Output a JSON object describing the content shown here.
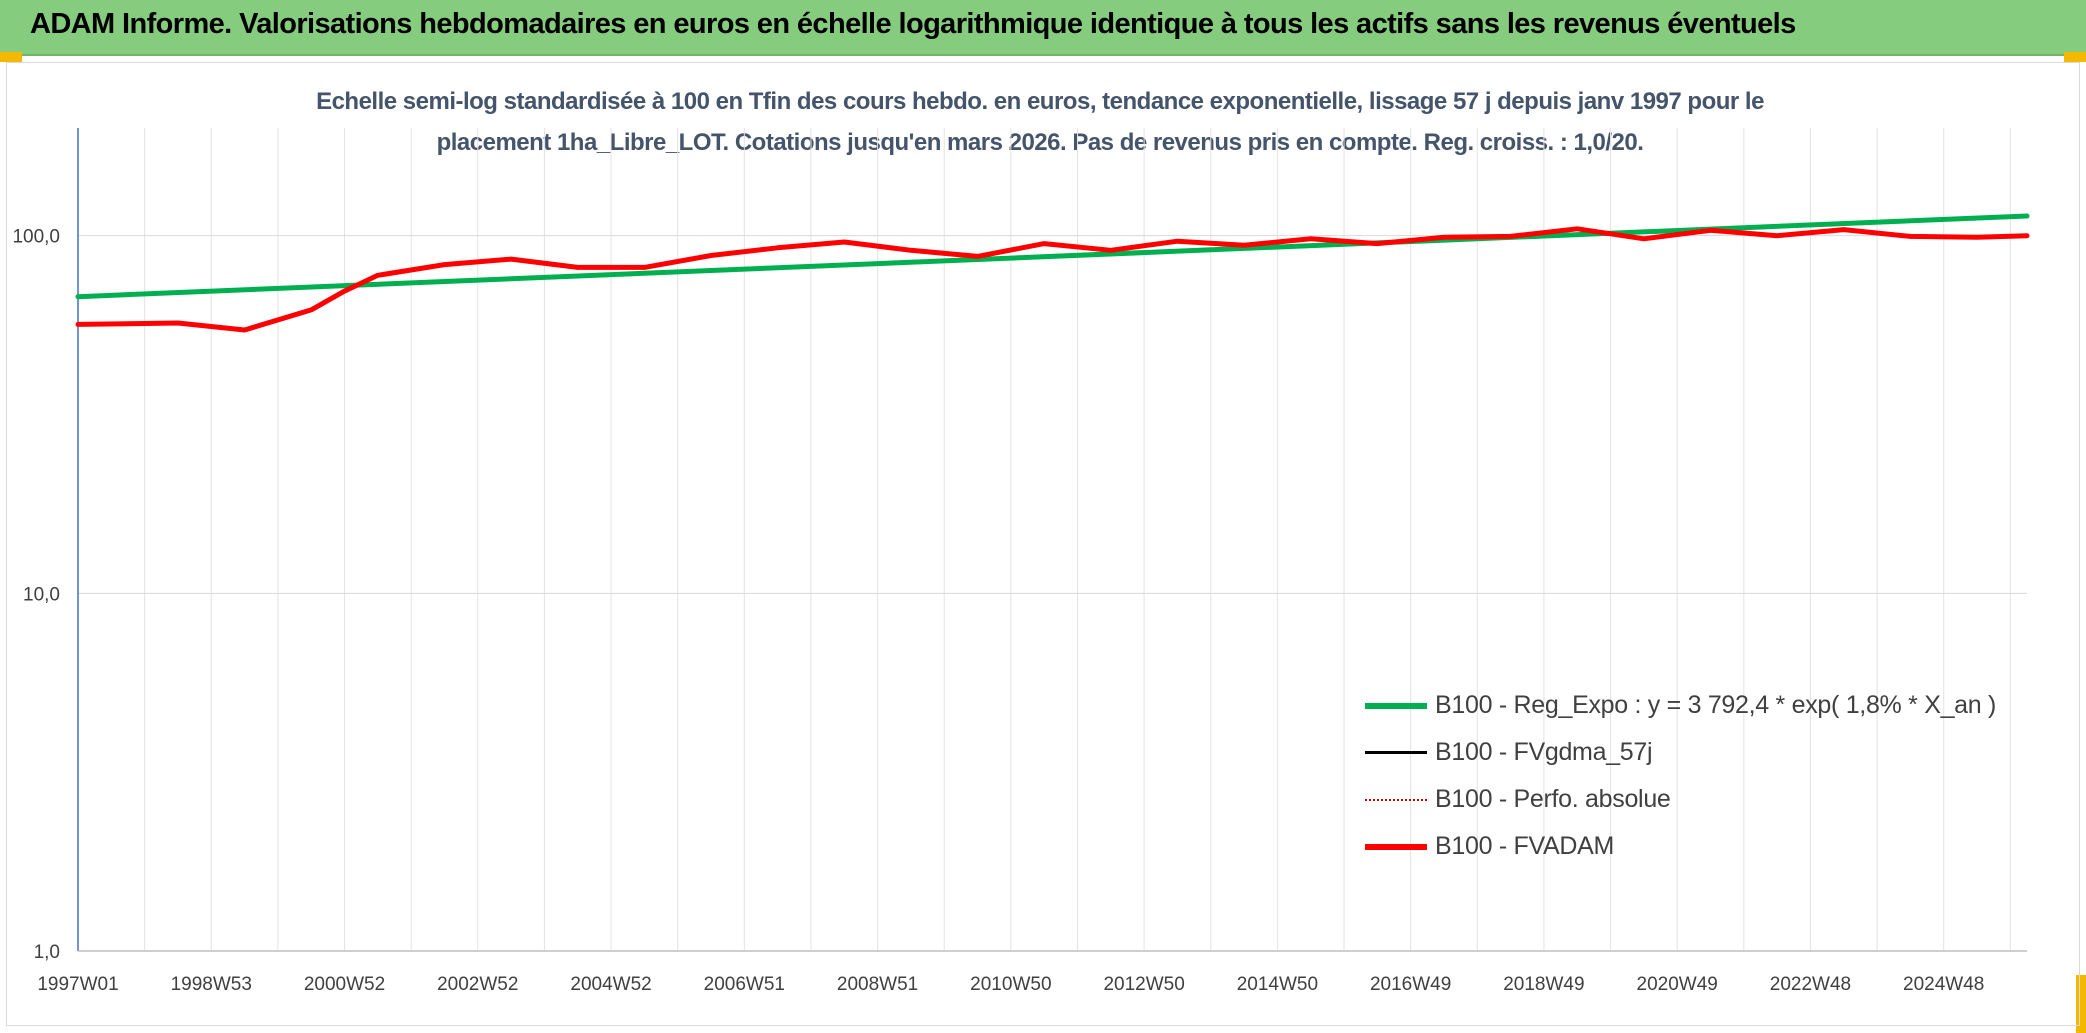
{
  "banner": {
    "title": "ADAM Informe. Valorisations hebdomadaires en euros en échelle logarithmique identique à tous les actifs sans les revenus éventuels"
  },
  "colors": {
    "banner_bg": "#86cc7e",
    "corner_accent": "#f5b800",
    "title_text": "#44546a",
    "trend_green": "#00b050",
    "fvadam_red": "#ff0000",
    "fvgdma_black": "#000000",
    "perfo_dotted_red": "#c00000"
  },
  "chart_data": {
    "type": "line",
    "title_line1": "Echelle semi-log standardisée à 100 en Tfin des cours hebdo. en euros, tendance exponentielle, lissage 57 j depuis janv 1997 pour le",
    "title_line2": "placement 1ha_Libre_LOT. Cotations jusqu'en mars 2026. Pas de revenus pris en compte. Reg. croiss. : 1,0/20.",
    "y_scale": "log",
    "ylim": [
      1,
      200
    ],
    "y_ticks": [
      {
        "value": 1,
        "label": "1,0"
      },
      {
        "value": 10,
        "label": "10,0"
      },
      {
        "value": 100,
        "label": "100,0"
      }
    ],
    "xlim": [
      1997.0,
      2026.25
    ],
    "x_ticks": [
      {
        "value": 1997.0,
        "label": "1997W01"
      },
      {
        "value": 1999.0,
        "label": "1998W53"
      },
      {
        "value": 2001.0,
        "label": "2000W52"
      },
      {
        "value": 2003.0,
        "label": "2002W52"
      },
      {
        "value": 2005.0,
        "label": "2004W52"
      },
      {
        "value": 2007.0,
        "label": "2006W51"
      },
      {
        "value": 2009.0,
        "label": "2008W51"
      },
      {
        "value": 2011.0,
        "label": "2010W50"
      },
      {
        "value": 2013.0,
        "label": "2012W50"
      },
      {
        "value": 2015.0,
        "label": "2014W50"
      },
      {
        "value": 2017.0,
        "label": "2016W49"
      },
      {
        "value": 2019.0,
        "label": "2018W49"
      },
      {
        "value": 2021.0,
        "label": "2020W49"
      },
      {
        "value": 2023.0,
        "label": "2022W48"
      },
      {
        "value": 2025.0,
        "label": "2024W48"
      }
    ],
    "x_minor_grid_step": 1,
    "grid": true,
    "legend_position": "bottom-right",
    "series": [
      {
        "name": "B100 - Reg_Expo : y = 3 792,4 * exp( 1,8% *  X_an )",
        "color": "#00b050",
        "style": "solid",
        "x": [
          1997.0,
          2026.25
        ],
        "y": [
          67.5,
          113.5
        ]
      },
      {
        "name": "B100 - FVgdma_57j",
        "color": "#000000",
        "style": "solid",
        "x": [],
        "y": []
      },
      {
        "name": "B100 - Perfo. absolue",
        "color": "#c00000",
        "style": "dotted",
        "x": [],
        "y": []
      },
      {
        "name": "B100 - FVADAM",
        "color": "#ff0000",
        "style": "solid",
        "x": [
          1997.0,
          1998.5,
          1999.5,
          2000.5,
          2001.0,
          2001.5,
          2002.5,
          2003.5,
          2004.5,
          2005.5,
          2006.5,
          2007.5,
          2008.5,
          2009.5,
          2010.5,
          2011.5,
          2012.5,
          2013.5,
          2014.5,
          2015.5,
          2016.5,
          2017.5,
          2018.5,
          2019.5,
          2020.5,
          2021.5,
          2022.5,
          2023.5,
          2024.5,
          2025.5,
          2026.25
        ],
        "y": [
          56.5,
          57,
          54.5,
          62,
          70,
          77.5,
          83,
          86,
          81.5,
          81.5,
          88,
          92.5,
          96,
          91,
          87.5,
          95,
          91,
          96.5,
          94,
          98,
          95,
          99,
          99.5,
          104.5,
          98,
          103.5,
          100,
          104,
          99.5,
          99,
          100
        ]
      }
    ]
  }
}
